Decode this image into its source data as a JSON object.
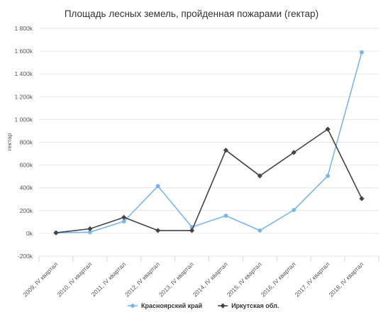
{
  "chart_data": {
    "type": "line",
    "title": "Площадь лесных земель, пройденная пожарами (гектар)",
    "ylabel": "гектар",
    "xlabel": "",
    "ylim": [
      -200000,
      1800000
    ],
    "yticks": [
      -200000,
      0,
      200000,
      400000,
      600000,
      800000,
      1000000,
      1200000,
      1400000,
      1600000,
      1800000
    ],
    "ytick_labels": [
      "-200k",
      "0k",
      "200k",
      "400k",
      "600k",
      "800k",
      "1 000k",
      "1 200k",
      "1 400k",
      "1 600k",
      "1 800k"
    ],
    "categories": [
      "2009, IV квартал",
      "2010, IV квартал",
      "2011, IV квартал",
      "2012, IV квартал",
      "2013, IV квартал",
      "2014, IV квартал",
      "2015, IV квартал",
      "2016, IV квартал",
      "2017, IV квартал",
      "2018, IV квартал"
    ],
    "series": [
      {
        "name": "Красноярский край",
        "color": "#7cb5ec",
        "marker": "circle",
        "values": [
          5000,
          10000,
          105000,
          415000,
          55000,
          155000,
          25000,
          205000,
          505000,
          1590000
        ]
      },
      {
        "name": "Иркутская обл.",
        "color": "#434348",
        "marker": "diamond",
        "values": [
          5000,
          40000,
          140000,
          25000,
          25000,
          730000,
          505000,
          710000,
          915000,
          305000
        ]
      }
    ],
    "grid": true,
    "legend_position": "bottom-center"
  }
}
